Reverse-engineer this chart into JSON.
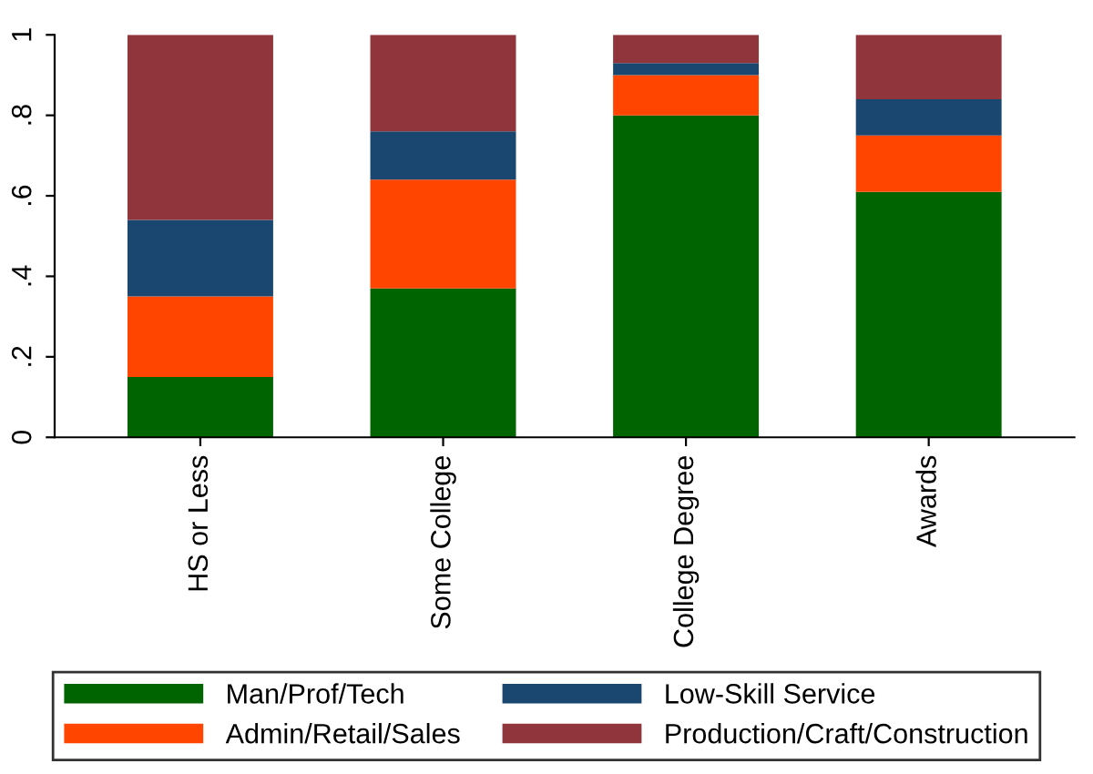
{
  "chart_data": {
    "type": "bar",
    "stacked": true,
    "categories": [
      "HS or Less",
      "Some College",
      "College Degree",
      "Awards"
    ],
    "series": [
      {
        "name": "Man/Prof/Tech",
        "color": "#006400",
        "values": [
          0.15,
          0.37,
          0.8,
          0.61
        ]
      },
      {
        "name": "Admin/Retail/Sales",
        "color": "#ff4500",
        "values": [
          0.2,
          0.27,
          0.1,
          0.14
        ]
      },
      {
        "name": "Low-Skill Service",
        "color": "#1a476f",
        "values": [
          0.19,
          0.12,
          0.03,
          0.09
        ]
      },
      {
        "name": "Production/Craft/Construction",
        "color": "#90353b",
        "values": [
          0.46,
          0.24,
          0.07,
          0.16
        ]
      }
    ],
    "ylim": [
      0,
      1
    ],
    "yticks": [
      0,
      {
        "value": 0.2,
        "label": ".2"
      },
      {
        "value": 0.4,
        "label": ".4"
      },
      {
        "value": 0.6,
        "label": ".6"
      },
      {
        "value": 0.8,
        "label": ".8"
      },
      1
    ],
    "grid": false,
    "legend": "bottom"
  }
}
